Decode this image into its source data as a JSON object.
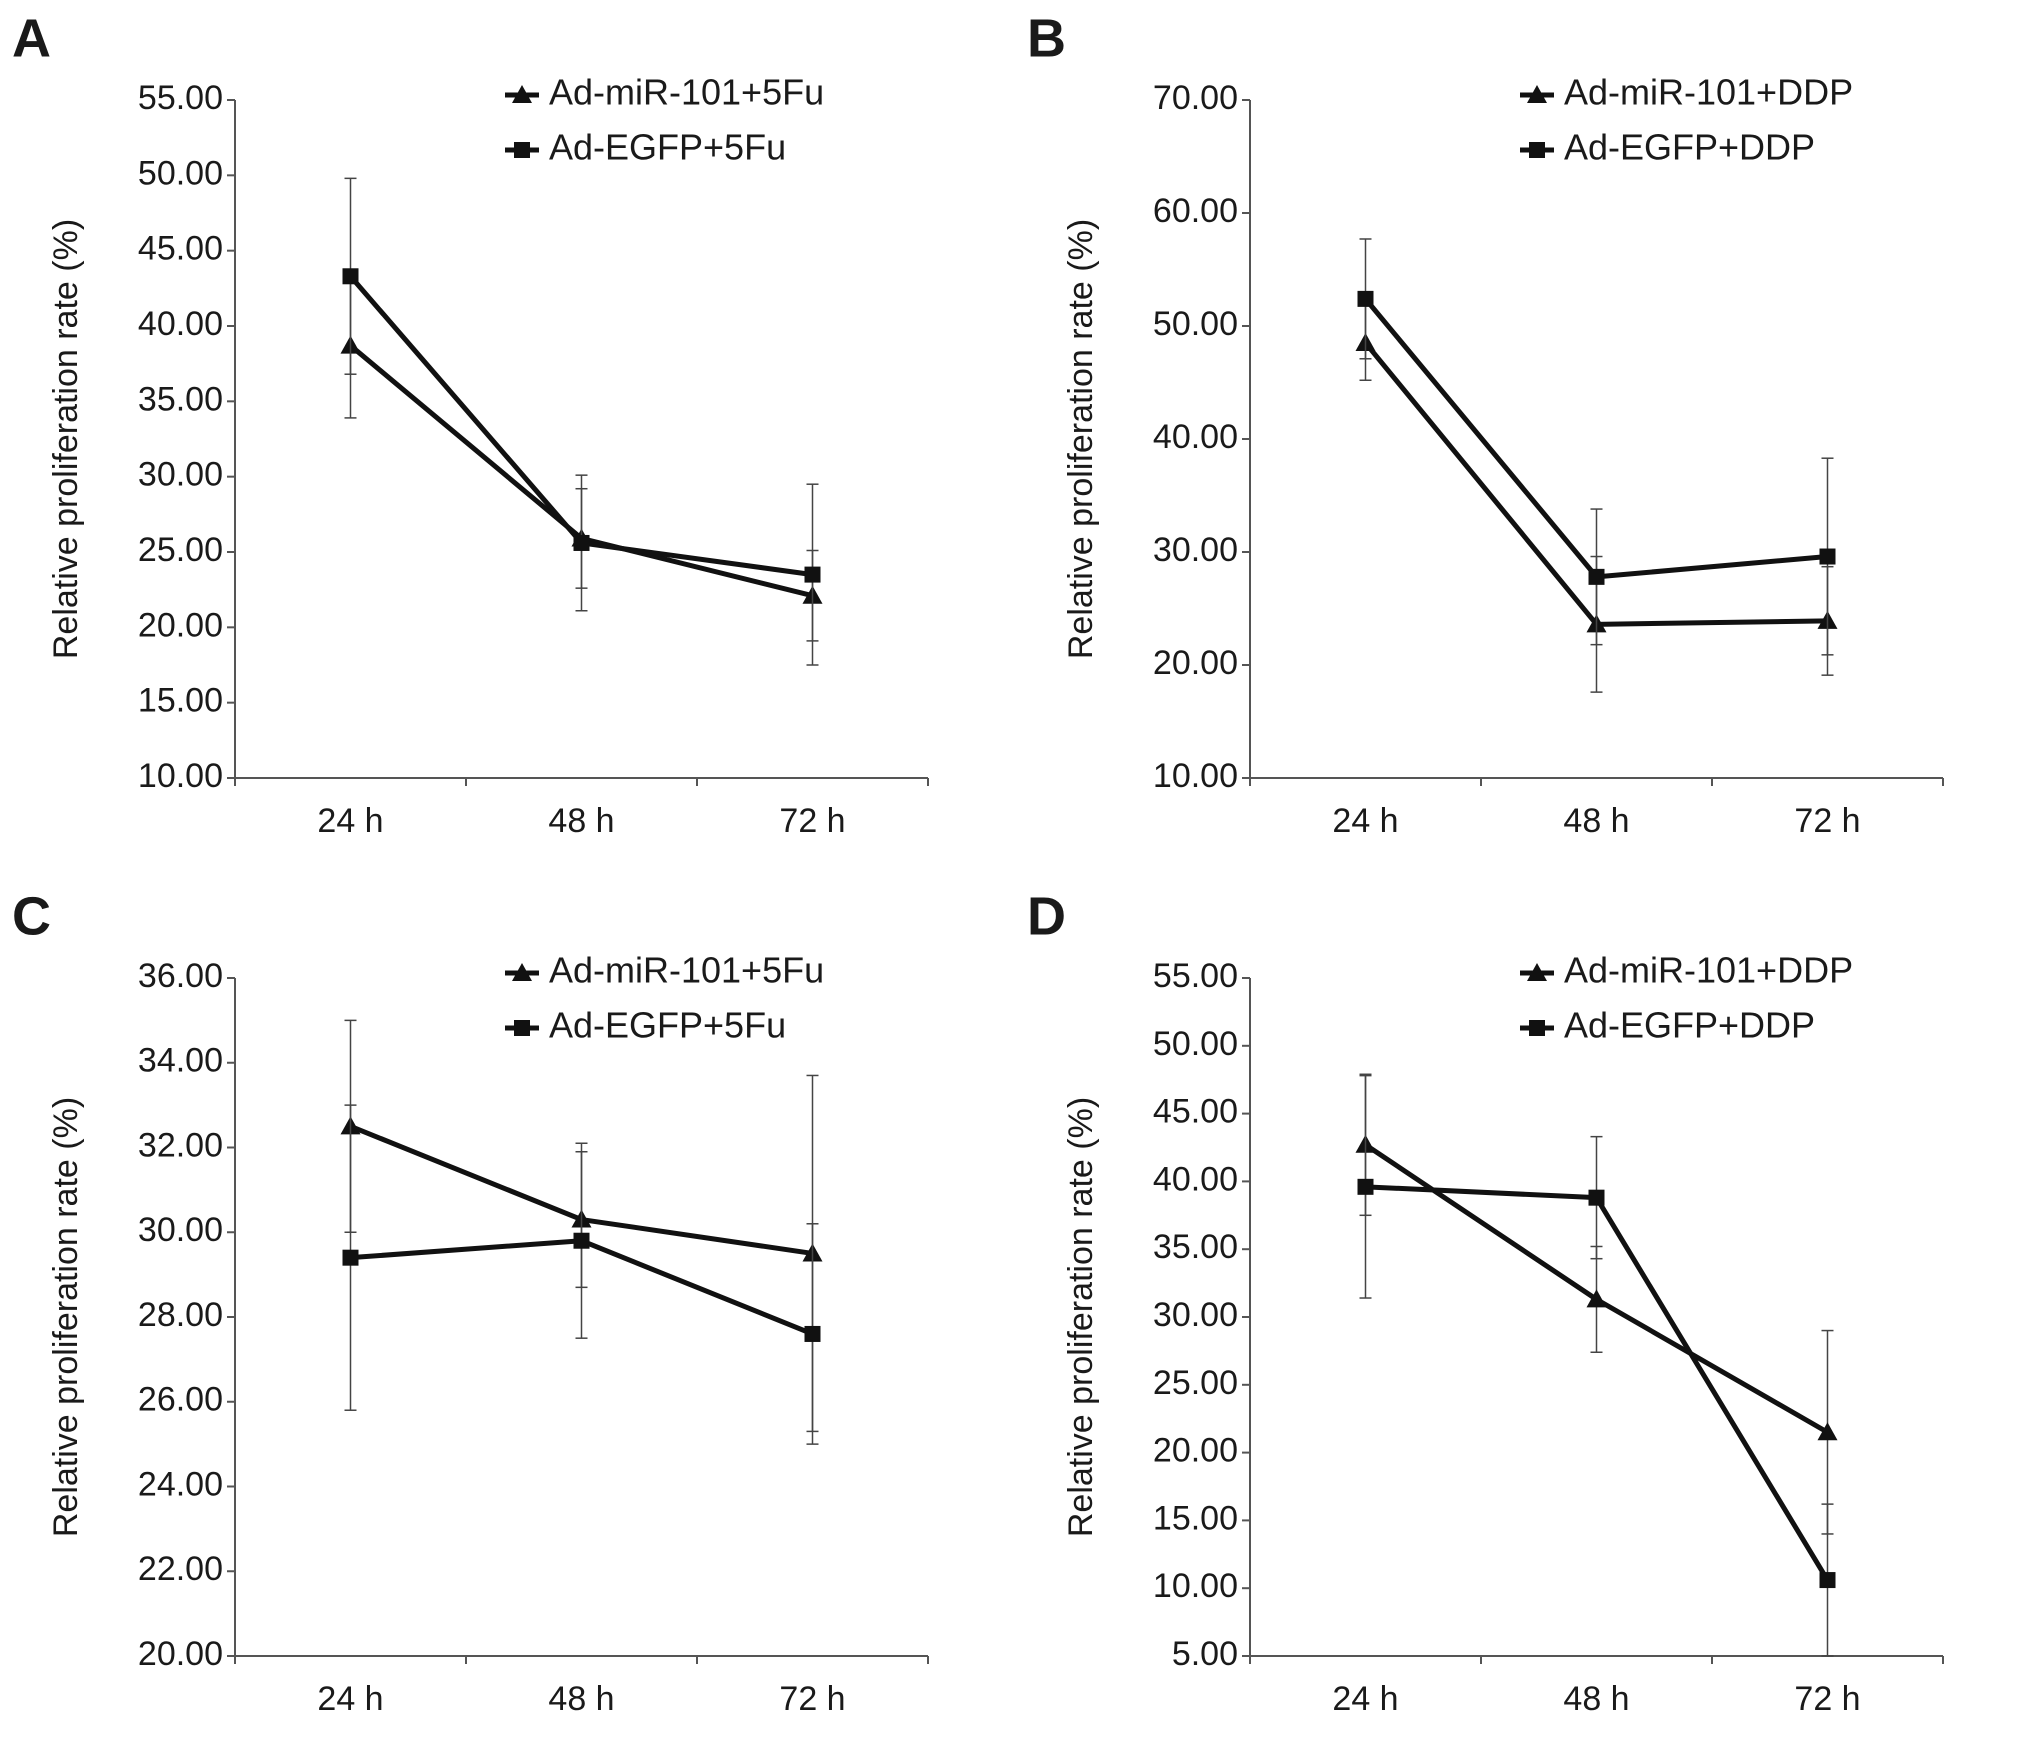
{
  "chart_data": [
    {
      "type": "line",
      "panel": "A",
      "ylabel": "Relative proliferation rate (%)",
      "categories": [
        "24 h",
        "48 h",
        "72 h"
      ],
      "ylim": [
        10,
        55
      ],
      "yticks": [
        {
          "value": 10,
          "label": "10.00"
        },
        {
          "value": 15,
          "label": "15.00"
        },
        {
          "value": 20,
          "label": "20.00"
        },
        {
          "value": 25,
          "label": "25.00"
        },
        {
          "value": 30,
          "label": "30.00"
        },
        {
          "value": 35,
          "label": "35.00"
        },
        {
          "value": 40,
          "label": "40.00"
        },
        {
          "value": 45,
          "label": "45.00"
        },
        {
          "value": 50,
          "label": "50.00"
        },
        {
          "value": 55,
          "label": "55.00"
        }
      ],
      "series": [
        {
          "name": "Ad-miR-101+5Fu",
          "color": "#111111",
          "marker": "triangle",
          "values": [
            38.7,
            25.9,
            22.1
          ],
          "errors": [
            4.8,
            3.3,
            3.0
          ]
        },
        {
          "name": "Ad-EGFP+5Fu",
          "color": "#111111",
          "marker": "square",
          "values": [
            43.3,
            25.6,
            23.5
          ],
          "errors": [
            6.5,
            4.5,
            6.0
          ]
        }
      ]
    },
    {
      "type": "line",
      "panel": "B",
      "ylabel": "Relative proliferation rate (%)",
      "categories": [
        "24 h",
        "48 h",
        "72 h"
      ],
      "ylim": [
        10,
        70
      ],
      "yticks": [
        {
          "value": 10,
          "label": "10.00"
        },
        {
          "value": 20,
          "label": "20.00"
        },
        {
          "value": 30,
          "label": "30.00"
        },
        {
          "value": 40,
          "label": "40.00"
        },
        {
          "value": 50,
          "label": "50.00"
        },
        {
          "value": 60,
          "label": "60.00"
        },
        {
          "value": 70,
          "label": "70.00"
        }
      ],
      "series": [
        {
          "name": "Ad-miR-101+DDP",
          "color": "#111111",
          "marker": "triangle",
          "values": [
            48.5,
            23.6,
            23.9
          ],
          "errors": [
            3.3,
            6.0,
            4.8
          ]
        },
        {
          "name": "Ad-EGFP+DDP",
          "color": "#111111",
          "marker": "square",
          "values": [
            52.4,
            27.8,
            29.6
          ],
          "errors": [
            5.3,
            6.0,
            8.7
          ]
        }
      ]
    },
    {
      "type": "line",
      "panel": "C",
      "ylabel": "Relative proliferation rate (%)",
      "categories": [
        "24 h",
        "48 h",
        "72 h"
      ],
      "ylim": [
        20,
        36
      ],
      "yticks": [
        {
          "value": 20,
          "label": "20.00"
        },
        {
          "value": 22,
          "label": "22.00"
        },
        {
          "value": 24,
          "label": "24.00"
        },
        {
          "value": 26,
          "label": "26.00"
        },
        {
          "value": 28,
          "label": "28.00"
        },
        {
          "value": 30,
          "label": "30.00"
        },
        {
          "value": 32,
          "label": "32.00"
        },
        {
          "value": 34,
          "label": "34.00"
        },
        {
          "value": 36,
          "label": "36.00"
        }
      ],
      "series": [
        {
          "name": "Ad-miR-101+5Fu",
          "color": "#111111",
          "marker": "triangle",
          "values": [
            32.5,
            30.3,
            29.5
          ],
          "errors": [
            2.5,
            1.6,
            4.2
          ]
        },
        {
          "name": "Ad-EGFP+5Fu",
          "color": "#111111",
          "marker": "square",
          "values": [
            29.4,
            29.8,
            27.6
          ],
          "errors": [
            3.6,
            2.3,
            2.6
          ]
        }
      ]
    },
    {
      "type": "line",
      "panel": "D",
      "ylabel": "Relative proliferation rate (%)",
      "categories": [
        "24 h",
        "48 h",
        "72 h"
      ],
      "ylim": [
        5,
        55
      ],
      "yticks": [
        {
          "value": 5,
          "label": "5.00"
        },
        {
          "value": 10,
          "label": "10.00"
        },
        {
          "value": 15,
          "label": "15.00"
        },
        {
          "value": 20,
          "label": "20.00"
        },
        {
          "value": 25,
          "label": "25.00"
        },
        {
          "value": 30,
          "label": "30.00"
        },
        {
          "value": 35,
          "label": "35.00"
        },
        {
          "value": 40,
          "label": "40.00"
        },
        {
          "value": 45,
          "label": "45.00"
        },
        {
          "value": 50,
          "label": "50.00"
        },
        {
          "value": 55,
          "label": "55.00"
        }
      ],
      "series": [
        {
          "name": "Ad-miR-101+DDP",
          "color": "#111111",
          "marker": "triangle",
          "values": [
            42.7,
            31.3,
            21.5
          ],
          "errors": [
            5.2,
            3.9,
            7.5
          ]
        },
        {
          "name": "Ad-EGFP+DDP",
          "color": "#111111",
          "marker": "square",
          "values": [
            39.6,
            38.8,
            10.6
          ],
          "errors": [
            8.2,
            4.5,
            5.6
          ]
        }
      ]
    }
  ]
}
